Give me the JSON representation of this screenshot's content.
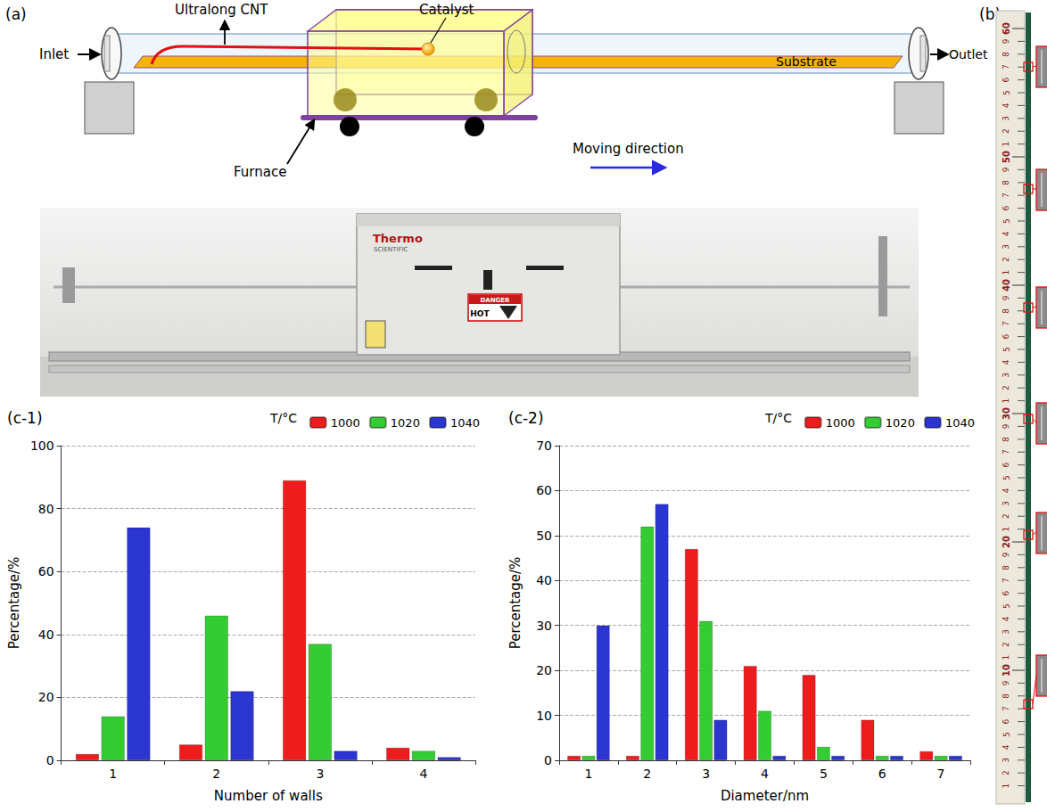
{
  "panels": {
    "a": {
      "label": "(a)",
      "schematic": {
        "inlet": "Inlet",
        "outlet": "Outlet",
        "cnt": "Ultralong CNT",
        "catalyst": "Catalyst",
        "substrate": "Substrate",
        "furnace": "Furnace",
        "moving": "Moving direction"
      },
      "photo": {
        "brand": "Thermo",
        "brand_sub": "SCIENTIFIC",
        "warning": "DANGER",
        "hot": "HOT"
      }
    },
    "b": {
      "label": "(b)",
      "ruler": {
        "major": [
          10,
          20,
          30,
          40,
          50,
          60
        ],
        "minor": [
          1,
          2,
          3,
          4,
          5,
          6,
          7,
          8,
          9
        ]
      }
    }
  },
  "chart_data": [
    {
      "type": "bar",
      "label": "(c-1)",
      "xlabel": "Number of walls",
      "ylabel": "Percentage/%",
      "zlabel": "T/°C",
      "categories": [
        1,
        2,
        3,
        4
      ],
      "series": [
        {
          "name": "1000",
          "color": "#ee1c1c",
          "values": [
            2,
            5,
            89,
            4
          ]
        },
        {
          "name": "1020",
          "color": "#33cc33",
          "values": [
            14,
            46,
            37,
            3
          ]
        },
        {
          "name": "1040",
          "color": "#2b35d0",
          "values": [
            74,
            22,
            3,
            1
          ]
        }
      ],
      "ylim": [
        0,
        100
      ],
      "yticks": [
        0,
        20,
        40,
        60,
        80,
        100
      ],
      "grid": true,
      "legend": "top-right"
    },
    {
      "type": "bar",
      "label": "(c-2)",
      "xlabel": "Diameter/nm",
      "ylabel": "Percentage/%",
      "zlabel": "T/°C",
      "categories": [
        1,
        2,
        3,
        4,
        5,
        6,
        7
      ],
      "series": [
        {
          "name": "1000",
          "color": "#ee1c1c",
          "values": [
            1,
            1,
            47,
            21,
            19,
            9,
            2
          ]
        },
        {
          "name": "1020",
          "color": "#33cc33",
          "values": [
            1,
            52,
            31,
            11,
            3,
            1,
            1
          ]
        },
        {
          "name": "1040",
          "color": "#2b35d0",
          "values": [
            30,
            57,
            9,
            1,
            1,
            1,
            1
          ]
        }
      ],
      "ylim": [
        0,
        70
      ],
      "yticks": [
        0,
        10,
        20,
        30,
        40,
        50,
        60,
        70
      ],
      "grid": true,
      "legend": "top-right"
    }
  ]
}
